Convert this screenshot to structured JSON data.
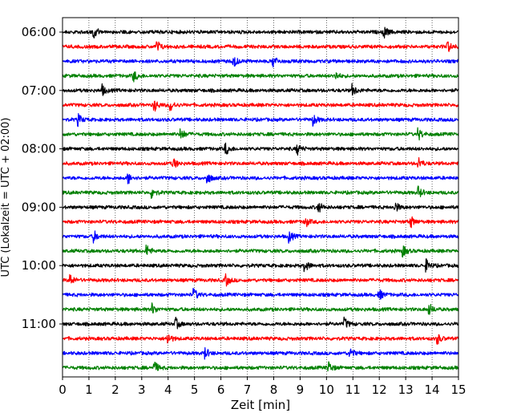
{
  "chart_data": {
    "type": "line",
    "subtype": "helicorder-seismogram",
    "title": "",
    "xlabel": "Zeit  [min]",
    "ylabel": "UTC (Lokalzeit = UTC + 02:00)",
    "xlim": [
      0,
      15
    ],
    "x_ticks": [
      0,
      1,
      2,
      3,
      4,
      5,
      6,
      7,
      8,
      9,
      10,
      11,
      12,
      13,
      14,
      15
    ],
    "x_tick_labels": [
      "0",
      "1",
      "2",
      "3",
      "4",
      "5",
      "6",
      "7",
      "8",
      "9",
      "10",
      "11",
      "12",
      "13",
      "14",
      "15"
    ],
    "y_tick_labels": [
      "06:00",
      "07:00",
      "08:00",
      "09:00",
      "10:00",
      "11:00"
    ],
    "grid": "vertical dotted at each minute",
    "trace_interval_minutes": 15,
    "traces": [
      {
        "start": "06:00",
        "color": "#000000",
        "events_min": [
          1.2,
          12.2
        ]
      },
      {
        "start": "06:15",
        "color": "#ff0000",
        "events_min": [
          3.6,
          14.6
        ]
      },
      {
        "start": "06:30",
        "color": "#0000ff",
        "events_min": [
          6.5,
          8.0
        ]
      },
      {
        "start": "06:45",
        "color": "#008000",
        "events_min": [
          2.7,
          10.3
        ]
      },
      {
        "start": "07:00",
        "color": "#000000",
        "events_min": [
          1.5,
          11.0
        ]
      },
      {
        "start": "07:15",
        "color": "#ff0000",
        "events_min": [
          3.5,
          4.1
        ]
      },
      {
        "start": "07:30",
        "color": "#0000ff",
        "events_min": [
          0.6,
          9.5
        ]
      },
      {
        "start": "07:45",
        "color": "#008000",
        "events_min": [
          4.5,
          13.5
        ]
      },
      {
        "start": "08:00",
        "color": "#000000",
        "events_min": [
          6.2,
          8.9
        ]
      },
      {
        "start": "08:15",
        "color": "#ff0000",
        "events_min": [
          4.2,
          13.5
        ]
      },
      {
        "start": "08:30",
        "color": "#0000ff",
        "events_min": [
          2.5,
          5.5
        ]
      },
      {
        "start": "08:45",
        "color": "#008000",
        "events_min": [
          3.4,
          13.5
        ]
      },
      {
        "start": "09:00",
        "color": "#000000",
        "events_min": [
          9.7,
          12.6
        ]
      },
      {
        "start": "09:15",
        "color": "#ff0000",
        "events_min": [
          9.2,
          13.2
        ]
      },
      {
        "start": "09:30",
        "color": "#0000ff",
        "events_min": [
          1.2,
          8.6
        ]
      },
      {
        "start": "09:45",
        "color": "#008000",
        "events_min": [
          3.2,
          12.9
        ]
      },
      {
        "start": "10:00",
        "color": "#000000",
        "events_min": [
          9.2,
          13.8
        ]
      },
      {
        "start": "10:15",
        "color": "#ff0000",
        "events_min": [
          0.3,
          6.2
        ]
      },
      {
        "start": "10:30",
        "color": "#0000ff",
        "events_min": [
          5.0,
          12.0
        ]
      },
      {
        "start": "10:45",
        "color": "#008000",
        "events_min": [
          3.4,
          13.9
        ]
      },
      {
        "start": "11:00",
        "color": "#000000",
        "events_min": [
          4.3,
          10.7
        ]
      },
      {
        "start": "11:15",
        "color": "#ff0000",
        "events_min": [
          4.0,
          14.2
        ]
      },
      {
        "start": "11:30",
        "color": "#0000ff",
        "events_min": [
          5.4,
          10.9
        ]
      },
      {
        "start": "11:45",
        "color": "#008000",
        "events_min": [
          3.5,
          10.1
        ]
      }
    ]
  }
}
